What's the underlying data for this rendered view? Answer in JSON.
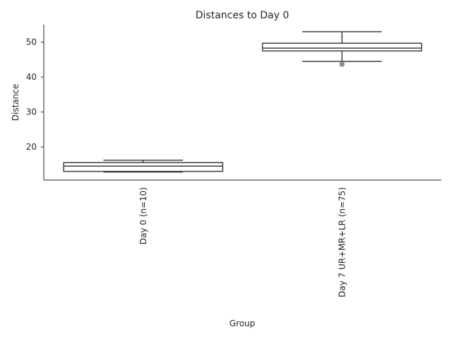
{
  "chart_data": {
    "type": "box",
    "title": "Distances to Day 0",
    "xlabel": "Group",
    "ylabel": "Distance",
    "ylim": [
      10.5,
      55
    ],
    "yticks": [
      20,
      30,
      40,
      50
    ],
    "grid": false,
    "legend": "none",
    "colors": {
      "axis": "#262626",
      "box_line": "#3f3f3f",
      "box_fill": "#ffffff",
      "flier": "#8c8c8c"
    },
    "categories": [
      "Day 0 (n=10)",
      "Day 7 UR+MR+LR (n=75)"
    ],
    "boxes": [
      {
        "category": "Day 0 (n=10)",
        "whisker_low": 12.8,
        "q1": 13.0,
        "median": 14.5,
        "q3": 15.5,
        "whisker_high": 16.2,
        "outliers": []
      },
      {
        "category": "Day 7 UR+MR+LR (n=75)",
        "whisker_low": 44.5,
        "q1": 47.5,
        "median": 48.3,
        "q3": 49.7,
        "whisker_high": 53.0,
        "outliers": [
          43.7
        ]
      }
    ]
  }
}
